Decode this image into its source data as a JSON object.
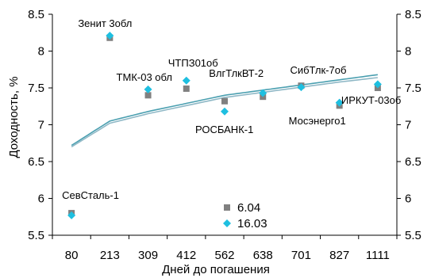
{
  "chart_data": {
    "type": "scatter",
    "categories": [
      "80",
      "213",
      "309",
      "412",
      "562",
      "638",
      "701",
      "827",
      "1111"
    ],
    "xlabel": "Дней до погашения",
    "ylabel": "Доходность, %",
    "ylim": [
      5.5,
      8.5
    ],
    "yticks": [
      "5.5",
      "6",
      "6.5",
      "7",
      "7.5",
      "8",
      "8.5"
    ],
    "y2ticks": [
      "5.5",
      "6",
      "6.5",
      "7",
      "7.5",
      "8",
      "8.5"
    ],
    "grid": false,
    "legend_placement": "bottom-center",
    "series": [
      {
        "name": "6.04",
        "marker": "square",
        "color": "#808080",
        "values": [
          5.8,
          8.18,
          7.4,
          7.49,
          7.32,
          7.38,
          7.53,
          7.26,
          7.5
        ]
      },
      {
        "name": "16.03",
        "marker": "diamond",
        "color": "#1ebfe0",
        "values": [
          5.77,
          8.21,
          7.48,
          7.6,
          7.18,
          7.43,
          7.51,
          7.3,
          7.55
        ]
      }
    ],
    "trend_lines": [
      {
        "color": "#4a9fb0",
        "values": [
          6.72,
          7.05,
          7.18,
          7.29,
          7.4,
          7.47,
          7.54,
          7.61,
          7.68
        ]
      },
      {
        "color": "#8fb8c6",
        "values": [
          6.7,
          7.02,
          7.15,
          7.26,
          7.37,
          7.44,
          7.51,
          7.58,
          7.64
        ]
      }
    ],
    "point_labels": [
      {
        "text": "СевСталь-1",
        "category": "80"
      },
      {
        "text": "Зенит 3обл",
        "category": "213"
      },
      {
        "text": "ТМК-03 обл",
        "category": "309"
      },
      {
        "text": "ЧТПЗ01об",
        "category": "412"
      },
      {
        "text": "РОСБАНК-1",
        "category": "562"
      },
      {
        "text": "ВлгТлкВТ-2",
        "category": "638"
      },
      {
        "text": "СибТлк-7об",
        "category": "701"
      },
      {
        "text": "Мосэнерго1",
        "category": "827"
      },
      {
        "text": "ИРКУТ-03об",
        "category": "1111"
      }
    ]
  }
}
